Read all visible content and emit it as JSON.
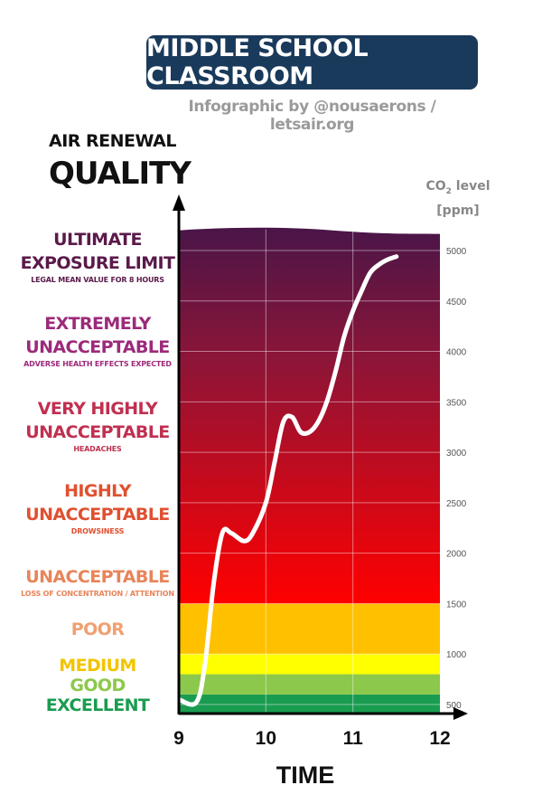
{
  "header": {
    "title": "MIDDLE SCHOOL CLASSROOM",
    "credit": "Infographic by @nousaerons / letsair.org"
  },
  "quality_heading": {
    "line1": "AIR RENEWAL",
    "line2": "QUALITY"
  },
  "levels": [
    {
      "name": "ULTIMATE\nEXPOSURE LIMIT",
      "desc": "LEGAL MEAN VALUE FOR 8 HOURS",
      "color": "#5a1a4a"
    },
    {
      "name": "EXTREMELY\nUNACCEPTABLE",
      "desc": "ADVERSE HEALTH EFFECTS EXPECTED",
      "color": "#9c2a7a"
    },
    {
      "name": "VERY HIGHLY\nUNACCEPTABLE",
      "desc": "HEADACHES",
      "color": "#c03050"
    },
    {
      "name": "HIGHLY\nUNACCEPTABLE",
      "desc": "DROWSINESS",
      "color": "#e05030"
    },
    {
      "name": "UNACCEPTABLE",
      "desc": "LOSS OF CONCENTRATION / ATTENTION",
      "color": "#e8845a"
    },
    {
      "name": "POOR",
      "desc": "",
      "color": "#f0a070"
    },
    {
      "name": "MEDIUM",
      "desc": "",
      "color": "#f2c400"
    },
    {
      "name": "GOOD",
      "desc": "",
      "color": "#8cc84b"
    },
    {
      "name": "EXCELLENT",
      "desc": "",
      "color": "#1a9c50"
    }
  ],
  "chart_data": {
    "type": "line",
    "title": "MIDDLE SCHOOL CLASSROOM",
    "xlabel": "TIME",
    "ylabel": "CO2 level [ppm]",
    "ylabel_main": "CO",
    "ylabel_sub": "2",
    "ylabel_rest": " level",
    "ylabel_unit": "[ppm]",
    "xlim": [
      9,
      12
    ],
    "ylim": [
      400,
      5300
    ],
    "x_ticks": [
      "9",
      "10",
      "11",
      "12"
    ],
    "x_tick_values": [
      9,
      10,
      11,
      12
    ],
    "y_ticks": [
      500,
      1000,
      1500,
      2000,
      2500,
      3000,
      3500,
      4000,
      4500,
      5000
    ],
    "grid": true,
    "bands": [
      {
        "from": 400,
        "to": 600,
        "color": "#1a9c50"
      },
      {
        "from": 600,
        "to": 800,
        "color": "#8cc84b"
      },
      {
        "from": 800,
        "to": 1000,
        "color": "#ffff00"
      },
      {
        "from": 1000,
        "to": 1500,
        "color": "#ffc000"
      }
    ],
    "gradient": {
      "from": 1500,
      "top_color": "#4a1548",
      "mid_color": "#8c1538",
      "bottom_color": "#ff0000"
    },
    "series": [
      {
        "color": "#ffffff",
        "x": [
          9.0,
          9.2,
          9.3,
          9.4,
          9.5,
          9.6,
          9.75,
          9.85,
          10.0,
          10.1,
          10.2,
          10.3,
          10.4,
          10.5,
          10.6,
          10.7,
          10.8,
          10.9,
          11.0,
          11.1,
          11.2,
          11.3,
          11.4,
          11.5
        ],
        "y": [
          550,
          520,
          900,
          1700,
          2200,
          2200,
          2120,
          2200,
          2500,
          2900,
          3300,
          3350,
          3200,
          3200,
          3300,
          3500,
          3800,
          4150,
          4400,
          4600,
          4780,
          4860,
          4910,
          4940
        ]
      }
    ]
  }
}
